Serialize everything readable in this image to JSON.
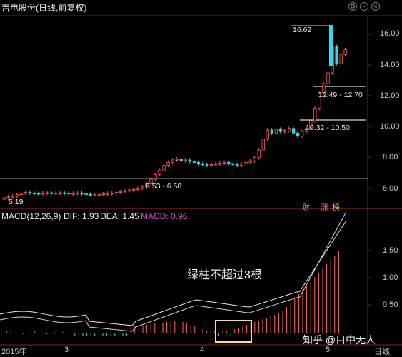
{
  "window": {
    "title": "吉电股份(日线,前复权)"
  },
  "price_axis": [
    "16.00",
    "14.00",
    "12.00",
    "10.00",
    "8.00",
    "6.00"
  ],
  "macd_axis": [
    "1.50",
    "1.00",
    "0.50"
  ],
  "annotations": {
    "high": "16.62",
    "low": "5.19",
    "range_upper": "12.49 - 12.70",
    "range_mid": "10.32 - 10.50",
    "range_low": "6.53 - 6.58"
  },
  "badges": {
    "cai": "财",
    "zhang": "涨",
    "bang": "榜"
  },
  "indicator": {
    "name": "MACD(12,26,9)",
    "dif": "DIF: 1.93",
    "dea": "DEA: 1.45",
    "macd": "MACD: 0.96"
  },
  "note": "绿柱不超过3根",
  "x_axis": {
    "year": "2015年",
    "m3": "3",
    "m4": "4",
    "m5": "5",
    "period": "日线"
  },
  "watermark": "知乎 @目中无人",
  "colors": {
    "up": "#ff5a5a",
    "down": "#39d4e6",
    "dif": "#e6e6e6",
    "dea": "#e6e6e6",
    "macd_text": "#d24bd2",
    "box": "#f3e28a"
  }
}
